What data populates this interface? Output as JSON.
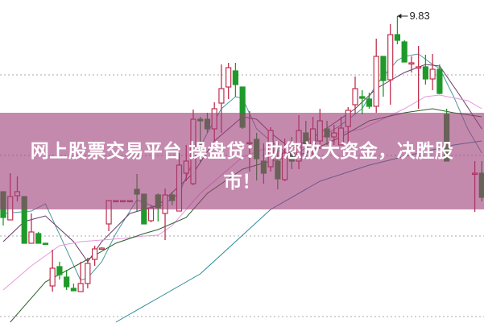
{
  "banner": {
    "line1": "网上股票交易平台 操盘贷：助您放大资金，决胜股",
    "line2": "市！"
  },
  "chart_data": {
    "type": "candlestick",
    "title": "",
    "xlabel": "",
    "ylabel": "",
    "grid": true,
    "annotation": {
      "label": "9.83",
      "candle_index": 56,
      "value": 9.83
    },
    "colors": {
      "up": "#c0304c",
      "down": "#1f9a2a",
      "banner": "#c48aae"
    },
    "candles_fields": [
      "index",
      "open",
      "close",
      "high",
      "low"
    ],
    "candles": [
      [
        0,
        5.47,
        4.83,
        5.47,
        4.63
      ],
      [
        1,
        4.77,
        5.35,
        5.93,
        4.77
      ],
      [
        2,
        5.37,
        5.47,
        5.85,
        5.23
      ],
      [
        3,
        5.35,
        4.19,
        5.35,
        4.19
      ],
      [
        4,
        4.19,
        4.47,
        4.93,
        4.19
      ],
      [
        5,
        4.43,
        4.19,
        4.47,
        4.19
      ],
      [
        6,
        4.19,
        4.17,
        4.19,
        4.17
      ],
      [
        7,
        3.13,
        3.57,
        4.03,
        2.99
      ],
      [
        8,
        3.61,
        3.41,
        3.73,
        3.29
      ],
      [
        9,
        3.35,
        3.11,
        3.53,
        3.03
      ],
      [
        10,
        3.07,
        3.01,
        3.19,
        3.01
      ],
      [
        11,
        2.99,
        3.19,
        3.73,
        2.99
      ],
      [
        12,
        3.19,
        3.69,
        3.83,
        3.07
      ],
      [
        13,
        3.79,
        4.05,
        4.13,
        3.63
      ],
      [
        14,
        4.07,
        4.07,
        4.09,
        4.07
      ],
      [
        15,
        4.67,
        5.25,
        5.25,
        4.49
      ],
      [
        16,
        5.25,
        5.25,
        5.25,
        5.25
      ],
      [
        17,
        5.25,
        5.25,
        5.25,
        5.25
      ],
      [
        18,
        5.25,
        5.25,
        5.25,
        5.25
      ],
      [
        19,
        5.53,
        5.41,
        5.91,
        4.99
      ],
      [
        20,
        5.41,
        4.67,
        5.41,
        4.67
      ],
      [
        21,
        4.75,
        5.07,
        5.13,
        4.71
      ],
      [
        22,
        5.39,
        5.07,
        5.43,
        4.73
      ],
      [
        23,
        4.93,
        5.39,
        5.55,
        4.27
      ],
      [
        24,
        5.39,
        5.25,
        5.47,
        5.13
      ],
      [
        25,
        4.99,
        6.13,
        6.43,
        4.99
      ],
      [
        26,
        5.93,
        6.23,
        6.63,
        5.73
      ],
      [
        27,
        5.67,
        7.27,
        7.51,
        5.63
      ],
      [
        28,
        7.27,
        7.23,
        7.33,
        6.19
      ],
      [
        29,
        7.27,
        7.03,
        7.43,
        6.93
      ],
      [
        30,
        7.03,
        7.53,
        7.69,
        6.73
      ],
      [
        31,
        7.67,
        8.03,
        8.63,
        6.93
      ],
      [
        32,
        8.07,
        8.55,
        8.67,
        7.77
      ],
      [
        33,
        8.47,
        8.13,
        8.67,
        7.83
      ],
      [
        34,
        8.07,
        7.07,
        8.07,
        7.03
      ],
      [
        35,
        6.69,
        6.69,
        7.47,
        5.97
      ],
      [
        36,
        6.77,
        6.29,
        6.93,
        5.75
      ],
      [
        37,
        6.23,
        5.93,
        6.67,
        5.67
      ],
      [
        38,
        6.09,
        6.99,
        7.07,
        5.97
      ],
      [
        39,
        6.23,
        5.79,
        6.71,
        5.53
      ],
      [
        40,
        5.77,
        6.43,
        6.79,
        5.73
      ],
      [
        41,
        6.43,
        6.23,
        6.83,
        6.03
      ],
      [
        42,
        6.23,
        6.99,
        7.37,
        6.03
      ],
      [
        43,
        6.93,
        6.63,
        7.23,
        6.33
      ],
      [
        44,
        6.63,
        7.03,
        7.33,
        6.33
      ],
      [
        45,
        6.73,
        7.23,
        7.53,
        6.53
      ],
      [
        46,
        7.03,
        6.83,
        7.23,
        6.63
      ],
      [
        47,
        6.83,
        6.93,
        7.13,
        6.63
      ],
      [
        48,
        6.63,
        7.05,
        7.33,
        6.63
      ],
      [
        49,
        7.09,
        7.49,
        7.57,
        6.63
      ],
      [
        50,
        7.63,
        8.03,
        8.33,
        7.39
      ],
      [
        51,
        7.83,
        7.79,
        7.99,
        7.39
      ],
      [
        52,
        7.77,
        7.59,
        7.93,
        7.53
      ],
      [
        53,
        7.59,
        8.83,
        9.27,
        7.43
      ],
      [
        54,
        8.83,
        8.23,
        8.83,
        7.83
      ],
      [
        55,
        8.25,
        9.37,
        9.63,
        7.63
      ],
      [
        56,
        9.37,
        9.23,
        9.83,
        9.13
      ],
      [
        57,
        9.19,
        8.69,
        9.23,
        8.69
      ],
      [
        58,
        8.67,
        8.67,
        8.83,
        8.43
      ],
      [
        59,
        8.57,
        8.57,
        9.09,
        7.53
      ],
      [
        60,
        8.57,
        8.27,
        8.87,
        8.13
      ],
      [
        61,
        8.27,
        8.51,
        8.89,
        7.99
      ],
      [
        62,
        8.51,
        7.91,
        8.63,
        7.89
      ],
      [
        63,
        7.39,
        6.23,
        7.53,
        6.23
      ],
      [
        67,
        5.93,
        5.93,
        6.23,
        4.97
      ],
      [
        68,
        5.93,
        5.33,
        6.23,
        5.23
      ]
    ],
    "moving_averages": [
      {
        "color": "#4a9a9a",
        "points": [
          [
            0,
            4.93
          ],
          [
            4,
            4.99
          ],
          [
            6,
            5.17
          ],
          [
            11,
            3.27
          ],
          [
            12,
            3.33
          ],
          [
            14,
            3.73
          ],
          [
            16,
            4.43
          ],
          [
            19,
            5.27
          ],
          [
            21,
            5.13
          ],
          [
            22,
            5.07
          ],
          [
            25,
            5.43
          ],
          [
            27,
            6.23
          ],
          [
            29,
            6.93
          ],
          [
            31,
            7.53
          ],
          [
            33,
            7.83
          ],
          [
            34,
            7.79
          ],
          [
            36,
            7.03
          ],
          [
            38,
            6.73
          ],
          [
            41,
            6.33
          ],
          [
            48,
            7.13
          ],
          [
            51,
            7.53
          ],
          [
            53,
            8.13
          ],
          [
            56,
            8.73
          ],
          [
            57,
            8.83
          ],
          [
            59,
            8.89
          ],
          [
            61,
            8.63
          ],
          [
            62,
            8.53
          ],
          [
            64,
            7.83
          ],
          [
            66,
            7.03
          ],
          [
            68,
            6.43
          ]
        ]
      },
      {
        "color": "#6a3a6a",
        "points": [
          [
            0,
            4.23
          ],
          [
            3,
            4.73
          ],
          [
            6,
            4.87
          ],
          [
            10,
            4.23
          ],
          [
            12,
            3.73
          ],
          [
            14,
            4.23
          ],
          [
            18,
            4.93
          ],
          [
            22,
            5.13
          ],
          [
            27,
            5.93
          ],
          [
            30,
            6.73
          ],
          [
            34,
            7.33
          ],
          [
            36,
            7.27
          ],
          [
            38,
            6.93
          ],
          [
            41,
            6.53
          ],
          [
            45,
            6.93
          ],
          [
            50,
            7.53
          ],
          [
            53,
            8.03
          ],
          [
            57,
            8.43
          ],
          [
            60,
            8.63
          ],
          [
            62,
            8.59
          ],
          [
            65,
            7.83
          ],
          [
            68,
            7.03
          ]
        ]
      },
      {
        "color": "#e598e0",
        "points": [
          [
            0,
            3.03
          ],
          [
            4,
            3.63
          ],
          [
            8,
            4.13
          ],
          [
            11,
            4.23
          ],
          [
            17,
            4.31
          ],
          [
            20,
            4.37
          ],
          [
            22,
            4.39
          ],
          [
            24,
            4.63
          ],
          [
            28,
            5.43
          ],
          [
            32,
            6.03
          ],
          [
            34,
            6.33
          ],
          [
            37,
            6.53
          ],
          [
            41,
            6.43
          ],
          [
            45,
            6.83
          ],
          [
            51,
            7.03
          ],
          [
            57,
            7.53
          ],
          [
            60,
            7.83
          ],
          [
            62,
            7.87
          ],
          [
            66,
            7.73
          ],
          [
            68,
            7.53
          ]
        ]
      },
      {
        "color": "#2e5e2e",
        "points": [
          [
            1,
            2.23
          ],
          [
            6,
            3.23
          ],
          [
            12,
            3.79
          ],
          [
            16,
            4.19
          ],
          [
            20,
            4.43
          ],
          [
            22,
            4.53
          ],
          [
            26,
            4.83
          ],
          [
            29,
            5.43
          ],
          [
            34,
            6.03
          ],
          [
            38,
            6.23
          ],
          [
            43,
            6.43
          ],
          [
            48,
            6.83
          ],
          [
            52,
            7.23
          ],
          [
            57,
            7.43
          ],
          [
            61,
            7.53
          ],
          [
            64,
            7.43
          ],
          [
            68,
            7.33
          ]
        ]
      },
      {
        "color": "#2a8a9a",
        "points": [
          [
            16,
            2.23
          ],
          [
            22,
            2.83
          ],
          [
            28,
            3.43
          ],
          [
            33,
            4.23
          ],
          [
            38,
            5.03
          ],
          [
            45,
            5.73
          ],
          [
            52,
            6.13
          ],
          [
            59,
            6.43
          ],
          [
            64,
            6.63
          ],
          [
            68,
            6.73
          ]
        ]
      }
    ]
  }
}
